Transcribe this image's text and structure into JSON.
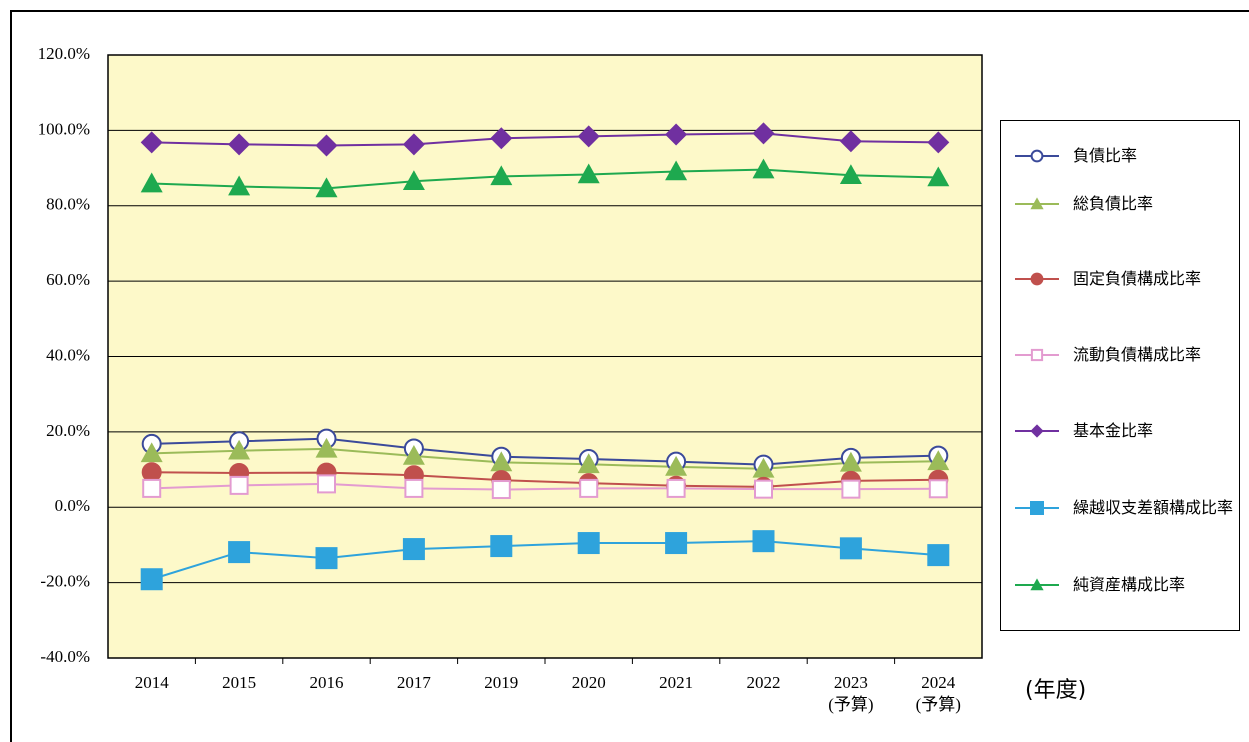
{
  "chart_data": {
    "type": "line",
    "categories": [
      "2014",
      "2015",
      "2016",
      "2017",
      "2019",
      "2020",
      "2021",
      "2022",
      "2023\n(予算)",
      "2024\n(予算)"
    ],
    "x_label": "(年度)",
    "ylim": [
      -40,
      120
    ],
    "yticks": [
      {
        "value": -40,
        "label": "-40.0%"
      },
      {
        "value": -20,
        "label": "-20.0%"
      },
      {
        "value": 0,
        "label": "0.0%"
      },
      {
        "value": 20,
        "label": "20.0%"
      },
      {
        "value": 40,
        "label": "40.0%"
      },
      {
        "value": 60,
        "label": "60.0%"
      },
      {
        "value": 80,
        "label": "80.0%"
      },
      {
        "value": 100,
        "label": "100.0%"
      },
      {
        "value": 120,
        "label": "120.0%"
      }
    ],
    "grid": true,
    "series": [
      {
        "name": "負債比率",
        "color": "#3b4a9a",
        "marker": "circle-open",
        "values": [
          16.8,
          17.5,
          18.2,
          15.6,
          13.4,
          12.8,
          12.1,
          11.3,
          13.1,
          13.7
        ]
      },
      {
        "name": "総負債比率",
        "color": "#9bbb59",
        "marker": "triangle",
        "values": [
          14.3,
          15.0,
          15.5,
          13.6,
          11.9,
          11.4,
          10.7,
          10.2,
          11.8,
          12.2
        ]
      },
      {
        "name": "固定負債構成比率",
        "color": "#c0504d",
        "marker": "circle",
        "values": [
          9.3,
          9.1,
          9.2,
          8.5,
          7.2,
          6.4,
          5.7,
          5.4,
          7.0,
          7.3
        ]
      },
      {
        "name": "流動負債構成比率",
        "color": "#e39bd0",
        "marker": "square-open",
        "values": [
          5.0,
          5.8,
          6.2,
          5.0,
          4.7,
          5.0,
          5.0,
          4.8,
          4.8,
          4.9
        ]
      },
      {
        "name": "基本金比率",
        "color": "#7030a0",
        "marker": "diamond",
        "values": [
          96.8,
          96.3,
          96.0,
          96.3,
          97.9,
          98.4,
          98.9,
          99.2,
          97.1,
          96.8
        ]
      },
      {
        "name": "繰越収支差額構成比率",
        "color": "#2ea3dc",
        "marker": "square",
        "values": [
          -19.1,
          -11.9,
          -13.5,
          -11.1,
          -10.3,
          -9.5,
          -9.5,
          -9.0,
          -10.9,
          -12.7
        ]
      },
      {
        "name": "純資産構成比率",
        "color": "#1ea94f",
        "marker": "triangle",
        "values": [
          85.9,
          85.1,
          84.6,
          86.5,
          87.8,
          88.3,
          89.1,
          89.6,
          88.1,
          87.5
        ]
      }
    ]
  }
}
